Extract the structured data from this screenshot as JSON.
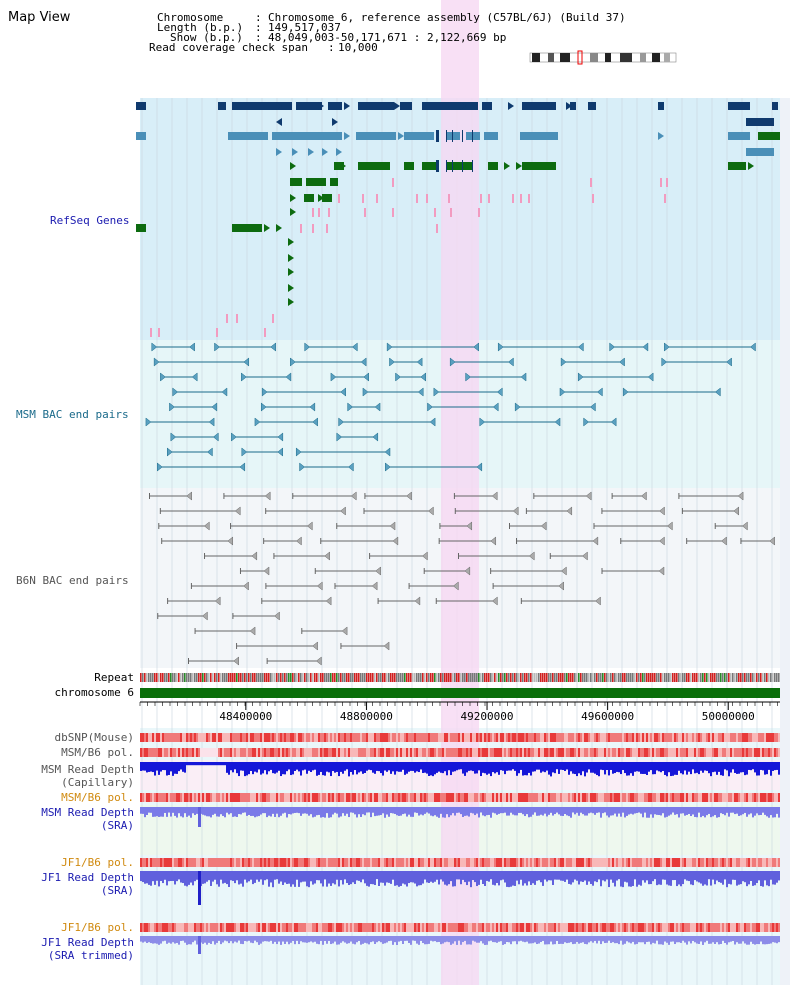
{
  "title": "Map View",
  "info": {
    "chromosome_label": "Chromosome",
    "chromosome_value": "Chromosome 6, reference assembly (C57BL/6J) (Build 37)",
    "length_label": "Length (b.p.)",
    "length_value": "149,517,037",
    "show_label": "Show (b.p.)",
    "show_value": "48,049,003-50,171,671 : 2,122,669 bp",
    "coverage_label": "Read coverage check span",
    "coverage_value": "10,000"
  },
  "tracks": {
    "refseq": "RefSeq Genes",
    "msm_bac": "MSM BAC end pairs",
    "b6n_bac": "B6N BAC end pairs",
    "repeat": "Repeat",
    "chromosome": "chromosome 6",
    "dbsnp": "dbSNP(Mouse)",
    "msm_pol1": "MSM/B6 pol.",
    "msm_depth_cap_1": "MSM Read Depth",
    "msm_depth_cap_2": "(Capillary)",
    "msm_pol2": "MSM/B6 pol.",
    "msm_depth_sra_1": "MSM Read Depth",
    "msm_depth_sra_2": "(SRA)",
    "jf1_pol1": "JF1/B6 pol.",
    "jf1_depth_sra_1": "JF1 Read Depth",
    "jf1_depth_sra_2": "(SRA)",
    "jf1_pol2": "JF1/B6 pol.",
    "jf1_depth_trim_1": "JF1 Read Depth",
    "jf1_depth_trim_2": "(SRA trimmed)"
  },
  "axis": {
    "ticks": [
      "48400000",
      "48800000",
      "49200000",
      "49600000",
      "50000000"
    ],
    "tick_values": [
      48400000,
      48800000,
      49200000,
      49600000,
      50000000
    ],
    "range": [
      48049003,
      50171671
    ]
  },
  "colors": {
    "refseq_bg": "#d8eef8",
    "bac_bg": "#e6f6f8",
    "b6n_bg": "#f3f6f9",
    "highlight": "#f6d8f2",
    "gene_navy": "#0f3a6e",
    "gene_steel": "#4a8fb8",
    "gene_green": "#0d6b10",
    "msm_line": "#1a6a8a",
    "b6n_line": "#666666",
    "pink": "#f29bc0",
    "label_blue": "#1b1bb0",
    "label_teal": "#1a6a8a",
    "label_gray": "#555555",
    "label_orange": "#d08a10"
  }
}
